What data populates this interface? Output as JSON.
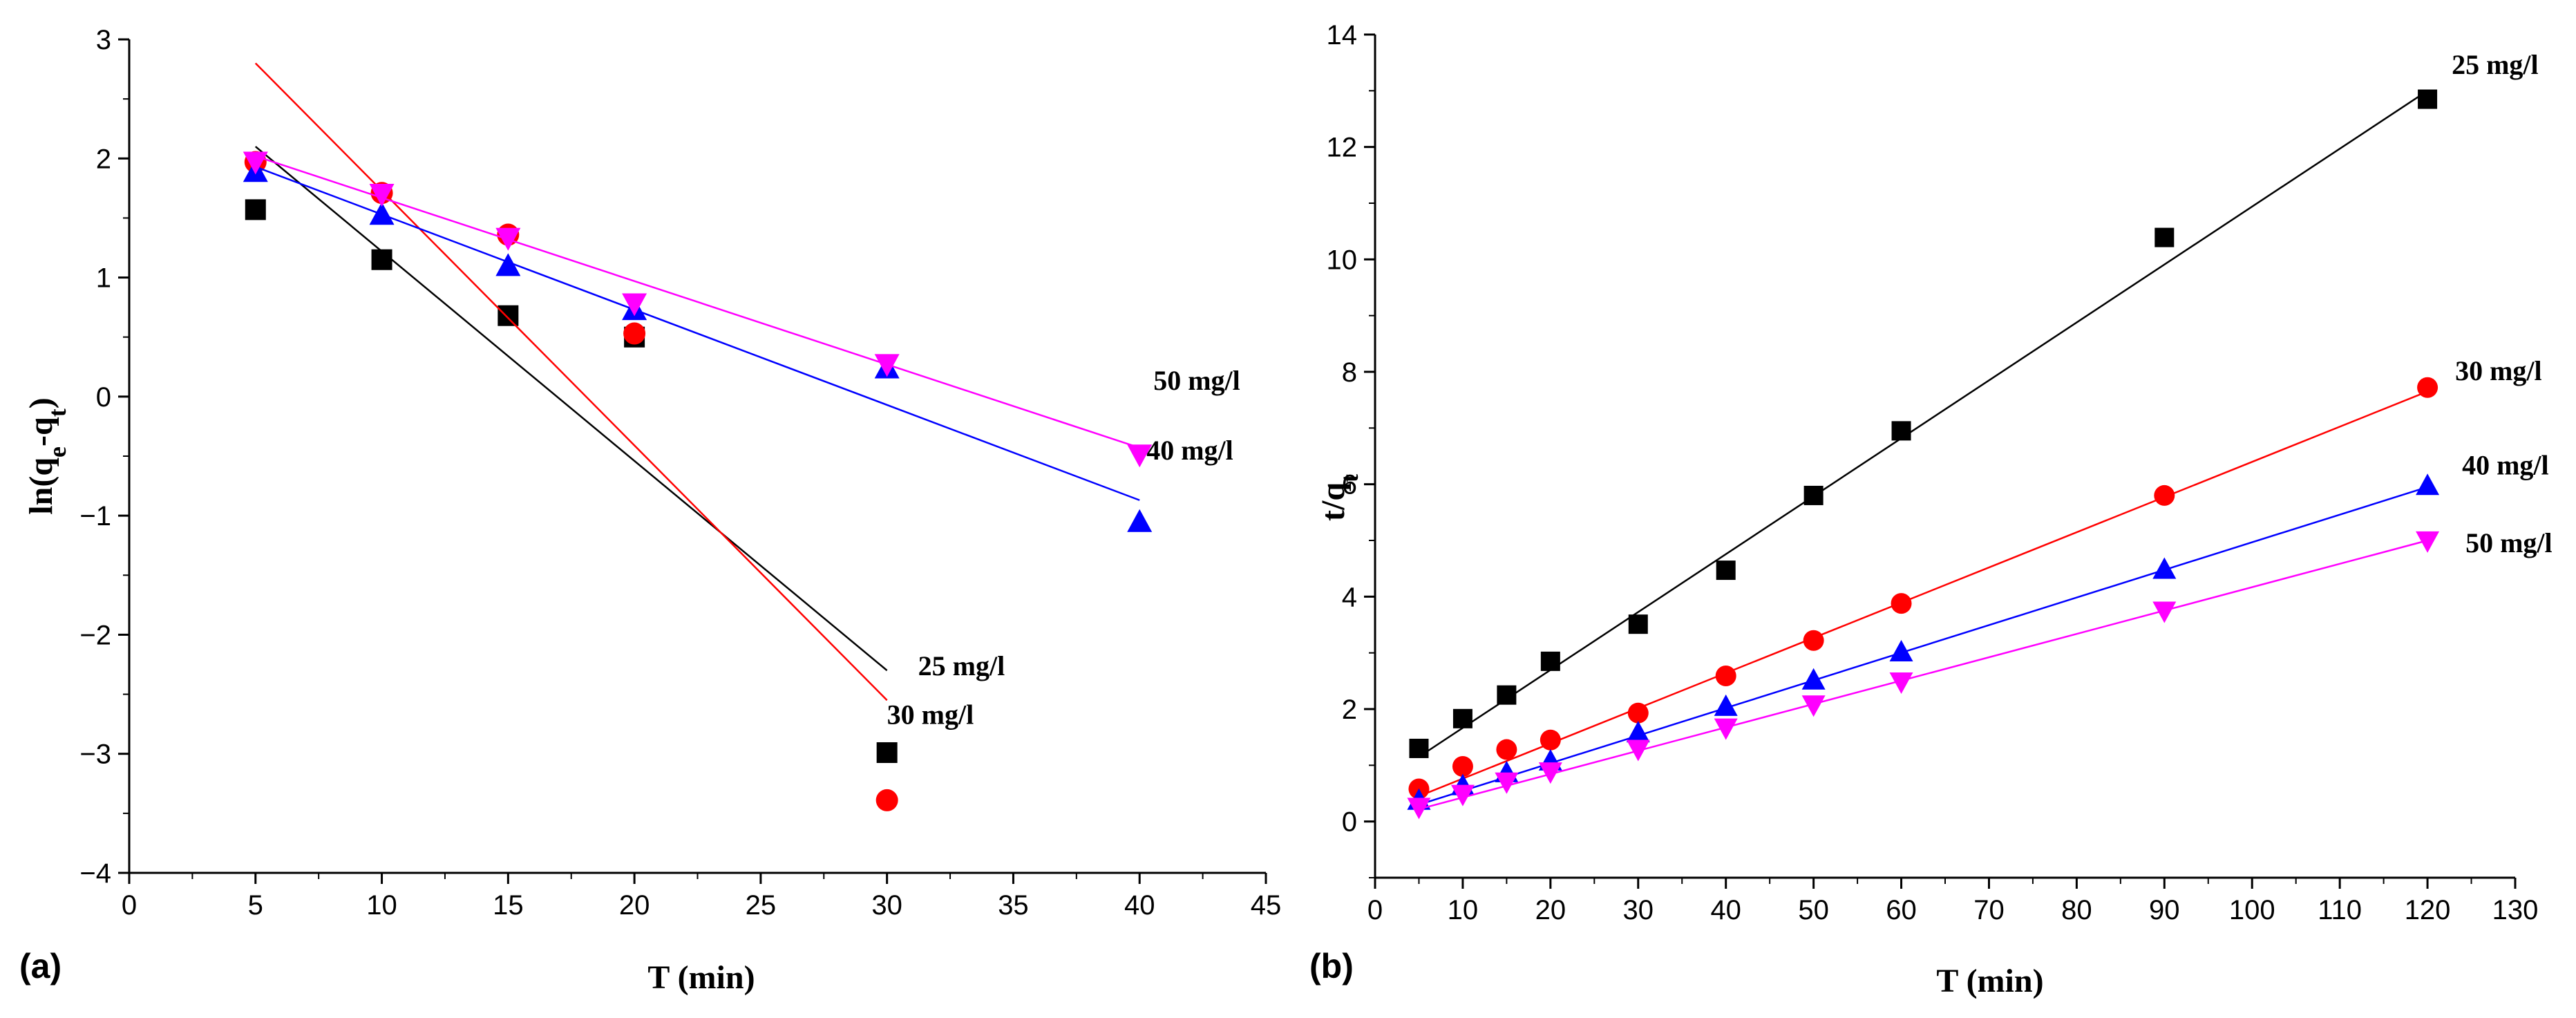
{
  "chart_data": [
    {
      "type": "scatter",
      "panel_label": "(a)",
      "xlabel": "T (min)",
      "ylabel": "ln(q",
      "ylabel_sub_e": "e",
      "ylabel_mid": "-q",
      "ylabel_sub_t": "t",
      "ylabel_end": ")",
      "xlim": [
        0,
        45
      ],
      "ylim": [
        -4,
        3
      ],
      "xticks": [
        "0",
        "5",
        "10",
        "15",
        "20",
        "25",
        "30",
        "35",
        "40",
        "45"
      ],
      "yticks": [
        "−4",
        "−3",
        "−2",
        "−1",
        "0",
        "1",
        "2",
        "3"
      ],
      "series": [
        {
          "name": "25 mg/l",
          "color": "#000000",
          "marker": "square",
          "x": [
            5,
            10,
            15,
            20,
            30
          ],
          "y": [
            1.57,
            1.15,
            0.68,
            0.5,
            -2.99
          ],
          "fit": {
            "x": [
              5,
              30
            ],
            "y": [
              2.1,
              -2.3
            ]
          },
          "label_at": [
            30,
            -2.27
          ]
        },
        {
          "name": "30 mg/l",
          "color": "#ff0000",
          "marker": "circle",
          "x": [
            5,
            10,
            15,
            20,
            30
          ],
          "y": [
            1.97,
            1.71,
            1.36,
            0.53,
            -3.39
          ],
          "fit": {
            "x": [
              5,
              30
            ],
            "y": [
              2.8,
              -2.55
            ]
          },
          "label_at": [
            30,
            -2.68
          ]
        },
        {
          "name": "40 mg/l",
          "color": "#0000ff",
          "marker": "triangle-up",
          "x": [
            5,
            10,
            15,
            20,
            30,
            40
          ],
          "y": [
            1.89,
            1.53,
            1.1,
            0.73,
            0.24,
            -1.05
          ],
          "fit": {
            "x": [
              5,
              40
            ],
            "y": [
              1.93,
              -0.87
            ]
          },
          "label_at": [
            40,
            -0.76
          ]
        },
        {
          "name": "50 mg/l",
          "color": "#ff00ff",
          "marker": "triangle-down",
          "x": [
            5,
            10,
            15,
            20,
            30,
            40
          ],
          "y": [
            1.97,
            1.7,
            1.33,
            0.78,
            0.27,
            -0.49
          ],
          "fit": {
            "x": [
              5,
              40
            ],
            "y": [
              2.02,
              -0.43
            ]
          },
          "label_at": [
            40,
            -0.22
          ]
        }
      ]
    },
    {
      "type": "scatter",
      "panel_label": "(b)",
      "xlabel": "T (min)",
      "ylabel": "t/q",
      "ylabel_sub_t": "t",
      "xlim": [
        0,
        130
      ],
      "ylim": [
        -1,
        14
      ],
      "xticks": [
        "0",
        "10",
        "20",
        "30",
        "40",
        "50",
        "60",
        "70",
        "80",
        "90",
        "100",
        "110",
        "120",
        "130"
      ],
      "yticks": [
        "0",
        "2",
        "4",
        "6",
        "8",
        "10",
        "12",
        "14"
      ],
      "series": [
        {
          "name": "25 mg/l",
          "color": "#000000",
          "marker": "square",
          "x": [
            5,
            10,
            15,
            20,
            30,
            40,
            50,
            60,
            90,
            120
          ],
          "y": [
            1.3,
            1.83,
            2.25,
            2.85,
            3.51,
            4.47,
            5.8,
            6.95,
            10.39,
            12.85
          ],
          "fit": {
            "x": [
              5,
              120
            ],
            "y": [
              1.15,
              13.0
            ]
          },
          "label_at": [
            120,
            13.3
          ]
        },
        {
          "name": "30 mg/l",
          "color": "#ff0000",
          "marker": "circle",
          "x": [
            5,
            10,
            15,
            20,
            30,
            40,
            50,
            60,
            90,
            120
          ],
          "y": [
            0.58,
            0.98,
            1.28,
            1.45,
            1.93,
            2.59,
            3.22,
            3.88,
            5.8,
            7.72
          ],
          "fit": {
            "x": [
              5,
              120
            ],
            "y": [
              0.45,
              7.65
            ]
          },
          "label_at": [
            120,
            7.95
          ]
        },
        {
          "name": "40 mg/l",
          "color": "#0000ff",
          "marker": "triangle-up",
          "x": [
            5,
            10,
            15,
            20,
            30,
            40,
            50,
            60,
            90,
            120
          ],
          "y": [
            0.38,
            0.64,
            0.87,
            1.08,
            1.58,
            2.05,
            2.52,
            3.02,
            4.49,
            5.98
          ],
          "fit": {
            "x": [
              5,
              120
            ],
            "y": [
              0.3,
              5.95
            ]
          },
          "label_at": [
            120,
            6.3
          ]
        },
        {
          "name": "50 mg/l",
          "color": "#ff00ff",
          "marker": "triangle-down",
          "x": [
            5,
            10,
            15,
            20,
            30,
            40,
            50,
            60,
            90,
            120
          ],
          "y": [
            0.25,
            0.48,
            0.7,
            0.88,
            1.28,
            1.66,
            2.07,
            2.48,
            3.74,
            4.99
          ],
          "fit": {
            "x": [
              5,
              120
            ],
            "y": [
              0.22,
              5.0
            ]
          },
          "label_at": [
            120,
            5.1
          ]
        }
      ]
    }
  ]
}
